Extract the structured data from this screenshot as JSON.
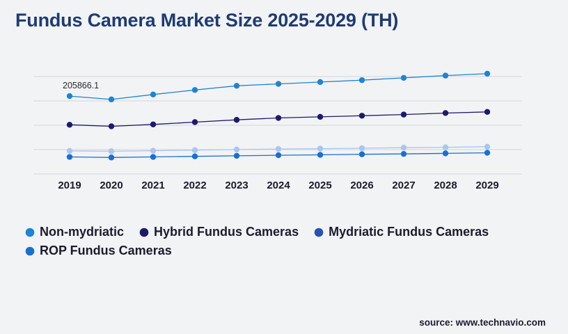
{
  "title": "Fundus Camera Market Size 2025-2029 (TH)",
  "source": "source: www.technavio.com",
  "colors": {
    "non_mydriatic": "#1d84d3",
    "hybrid": "#1c1a6b",
    "mydriatic": "#a9c6ee",
    "rop": "#1a6fd1",
    "grid": "#d4d6da",
    "background": "#f2f3f5",
    "title": "#1f3b73"
  },
  "legend": [
    {
      "label": "Non-mydriatic",
      "color": "#1d84d3"
    },
    {
      "label": "Hybrid Fundus Cameras",
      "color": "#1c1a6b"
    },
    {
      "label": "Mydriatic Fundus Cameras",
      "color": "#2652b0"
    },
    {
      "label": "ROP Fundus Cameras",
      "color": "#1a6fd1"
    }
  ],
  "chart_data": {
    "type": "line",
    "title": "Fundus Camera Market Size 2025-2029 (TH)",
    "xlabel": "",
    "ylabel": "",
    "x": [
      "2019",
      "2020",
      "2021",
      "2022",
      "2023",
      "2024",
      "2025",
      "2026",
      "2027",
      "2028",
      "2029"
    ],
    "ylim": [
      0,
      320000
    ],
    "grid": true,
    "legend_position": "bottom",
    "annotations": [
      {
        "series": "Non-mydriatic",
        "x": "2019",
        "label": "205866.1"
      }
    ],
    "series": [
      {
        "name": "Non-mydriatic",
        "color": "#1d84d3",
        "values": [
          205866.1,
          197000,
          210000,
          222000,
          233000,
          238000,
          243000,
          248000,
          254000,
          260000,
          265000
        ]
      },
      {
        "name": "Hybrid Fundus Cameras",
        "color": "#1c1a6b",
        "values": [
          130000,
          126000,
          131000,
          137000,
          143000,
          148000,
          151000,
          154000,
          157000,
          161000,
          164000
        ]
      },
      {
        "name": "Mydriatic Fundus Cameras",
        "color": "#a9c6ee",
        "values": [
          61000,
          60000,
          61500,
          63000,
          64500,
          66000,
          67000,
          68000,
          69500,
          70500,
          72000
        ]
      },
      {
        "name": "ROP Fundus Cameras",
        "color": "#1a6fd1",
        "values": [
          45000,
          43500,
          45000,
          46500,
          48000,
          49500,
          50500,
          52000,
          53000,
          54500,
          56000
        ]
      }
    ]
  }
}
